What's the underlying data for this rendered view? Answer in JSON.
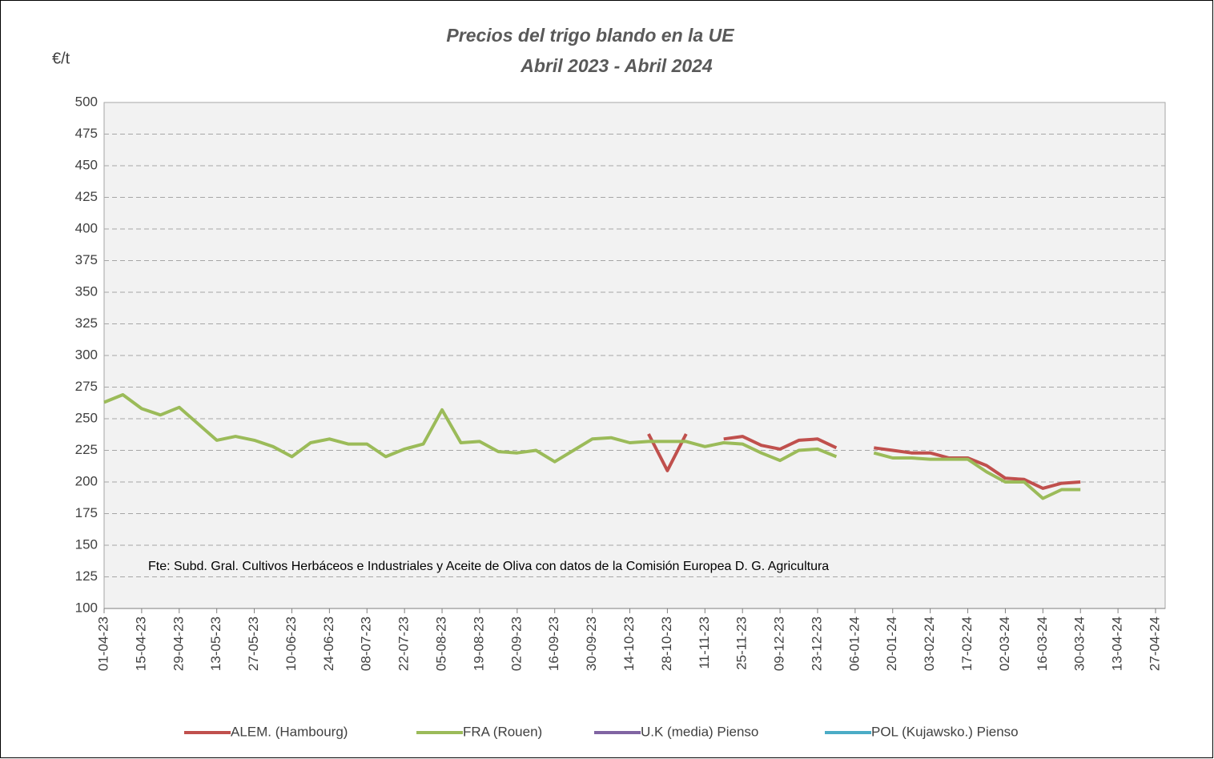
{
  "chart_data": {
    "type": "line",
    "title": "Precios del trigo blando en la UE",
    "subtitle": "Abril 2023 - Abril 2024",
    "y_label": "€/t",
    "annotation": "Fte: Subd. Gral. Cultivos Herbáceos e Industriales y Aceite de Oliva con  datos de la Comisión Europea D. G. Agricultura",
    "categories": [
      "01-04-23",
      null,
      "15-04-23",
      null,
      "29-04-23",
      null,
      "13-05-23",
      null,
      "27-05-23",
      null,
      "10-06-23",
      null,
      "24-06-23",
      null,
      "08-07-23",
      null,
      "22-07-23",
      null,
      "05-08-23",
      null,
      "19-08-23",
      null,
      "02-09-23",
      null,
      "16-09-23",
      null,
      "30-09-23",
      null,
      "14-10-23",
      null,
      "28-10-23",
      null,
      "11-11-23",
      null,
      "25-11-23",
      null,
      "09-12-23",
      null,
      "23-12-23",
      null,
      "06-01-24",
      null,
      "20-01-24",
      null,
      "03-02-24",
      null,
      "17-02-24",
      null,
      "02-03-24",
      null,
      "16-03-24",
      null,
      "30-03-24",
      null,
      "13-04-24",
      null,
      "27-04-24"
    ],
    "series": [
      {
        "name": "ALEM. (Hambourg)",
        "color": "#c0504d",
        "values": [
          null,
          null,
          null,
          null,
          null,
          null,
          null,
          null,
          null,
          null,
          null,
          null,
          null,
          null,
          null,
          null,
          null,
          null,
          null,
          null,
          null,
          null,
          null,
          null,
          null,
          null,
          null,
          null,
          null,
          238,
          209,
          238,
          null,
          234,
          236,
          229,
          226,
          233,
          234,
          227,
          null,
          227,
          225,
          223,
          223,
          219,
          219,
          213,
          203,
          202,
          195,
          199,
          200,
          null,
          null,
          null,
          null
        ]
      },
      {
        "name": "FRA (Rouen)",
        "color": "#9bbb59",
        "values": [
          263,
          269,
          258,
          253,
          259,
          246,
          233,
          236,
          233,
          228,
          220,
          231,
          234,
          230,
          230,
          220,
          226,
          230,
          257,
          231,
          232,
          224,
          223,
          225,
          216,
          225,
          234,
          235,
          231,
          232,
          232,
          232,
          228,
          231,
          230,
          223,
          217,
          225,
          226,
          220,
          null,
          223,
          219,
          219,
          218,
          218,
          218,
          208,
          200,
          200,
          187,
          194,
          194,
          null,
          null,
          null,
          null
        ]
      },
      {
        "name": "U.K (media) Pienso",
        "color": "#8064a2",
        "values": [
          null,
          null,
          null,
          null,
          null,
          null,
          null,
          null,
          null,
          null,
          null,
          null,
          null,
          null,
          null,
          null,
          null,
          null,
          null,
          null,
          null,
          null,
          null,
          null,
          null,
          null,
          null,
          null,
          null,
          null,
          null,
          null,
          null,
          null,
          null,
          null,
          null,
          null,
          null,
          null,
          null,
          null,
          null,
          null,
          null,
          null,
          null,
          null,
          null,
          null,
          null,
          null,
          null,
          null,
          null,
          null,
          null
        ]
      },
      {
        "name": "POL (Kujawsko.) Pienso",
        "color": "#4bacc6",
        "values": [
          null,
          null,
          null,
          null,
          null,
          null,
          null,
          null,
          null,
          null,
          null,
          null,
          null,
          null,
          null,
          null,
          null,
          null,
          null,
          null,
          null,
          null,
          null,
          null,
          null,
          null,
          null,
          null,
          null,
          null,
          null,
          null,
          null,
          null,
          null,
          null,
          null,
          null,
          null,
          null,
          null,
          null,
          null,
          null,
          null,
          null,
          null,
          null,
          null,
          null,
          null,
          null,
          null,
          null,
          null,
          null,
          null
        ]
      }
    ],
    "ylim": [
      100,
      500
    ],
    "yticks": [
      100,
      125,
      150,
      175,
      200,
      225,
      250,
      275,
      300,
      325,
      350,
      375,
      400,
      425,
      450,
      475,
      500
    ],
    "grid": true,
    "legend": "bottom"
  }
}
